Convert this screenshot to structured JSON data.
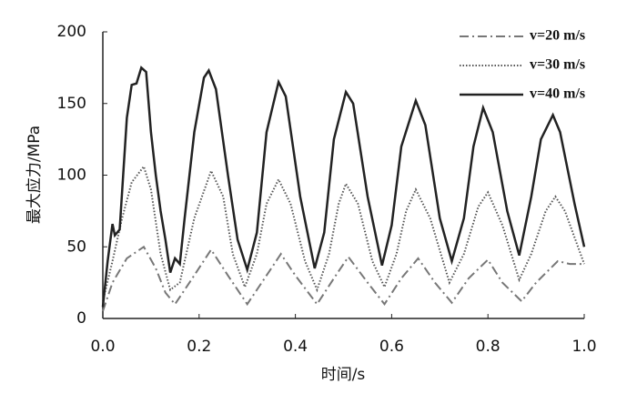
{
  "chart_data": {
    "type": "line",
    "x_label": "时间/s",
    "y_label": "最大应力/MPa",
    "xlim": [
      0,
      1
    ],
    "ylim": [
      0,
      200
    ],
    "xticks": [
      {
        "value": 0,
        "label": "0.0"
      },
      0.2,
      0.4,
      0.6,
      0.8,
      {
        "value": 1,
        "label": "1.0"
      }
    ],
    "yticks": [
      0,
      50,
      100,
      150,
      200
    ],
    "legend": "upper-right",
    "series": [
      {
        "name": "v=20 m/s",
        "color": "#777777",
        "style": "dashdot",
        "x": [
          0,
          0.02,
          0.05,
          0.085,
          0.11,
          0.13,
          0.15,
          0.18,
          0.225,
          0.26,
          0.3,
          0.33,
          0.37,
          0.4,
          0.445,
          0.48,
          0.51,
          0.55,
          0.585,
          0.62,
          0.655,
          0.69,
          0.725,
          0.76,
          0.8,
          0.83,
          0.87,
          0.9,
          0.945,
          0.97,
          1.0
        ],
        "values": [
          5,
          25,
          42,
          50,
          35,
          18,
          10,
          25,
          48,
          30,
          10,
          25,
          45,
          30,
          10,
          28,
          43,
          25,
          10,
          28,
          42,
          25,
          11,
          28,
          41,
          25,
          12,
          25,
          40,
          38,
          38
        ]
      },
      {
        "name": "v=30 m/s",
        "color": "#555555",
        "style": "dotted",
        "x": [
          0,
          0.02,
          0.04,
          0.06,
          0.085,
          0.1,
          0.12,
          0.14,
          0.16,
          0.19,
          0.225,
          0.25,
          0.27,
          0.295,
          0.32,
          0.34,
          0.365,
          0.39,
          0.42,
          0.445,
          0.47,
          0.49,
          0.505,
          0.53,
          0.56,
          0.585,
          0.61,
          0.63,
          0.65,
          0.68,
          0.72,
          0.75,
          0.78,
          0.8,
          0.83,
          0.865,
          0.89,
          0.92,
          0.94,
          0.96,
          1.0
        ],
        "values": [
          12,
          40,
          70,
          95,
          106,
          90,
          45,
          20,
          25,
          70,
          103,
          85,
          45,
          22,
          45,
          80,
          97,
          80,
          40,
          20,
          45,
          80,
          94,
          80,
          40,
          22,
          45,
          75,
          90,
          70,
          25,
          45,
          78,
          88,
          65,
          27,
          45,
          75,
          85,
          75,
          38
        ]
      },
      {
        "name": "v=40 m/s",
        "color": "#222222",
        "style": "solid",
        "x": [
          0,
          0.01,
          0.02,
          0.025,
          0.035,
          0.05,
          0.06,
          0.07,
          0.08,
          0.09,
          0.1,
          0.11,
          0.12,
          0.13,
          0.14,
          0.15,
          0.16,
          0.17,
          0.19,
          0.21,
          0.22,
          0.235,
          0.26,
          0.28,
          0.3,
          0.32,
          0.34,
          0.365,
          0.38,
          0.41,
          0.44,
          0.46,
          0.48,
          0.505,
          0.52,
          0.55,
          0.58,
          0.6,
          0.62,
          0.65,
          0.67,
          0.7,
          0.725,
          0.75,
          0.77,
          0.79,
          0.81,
          0.84,
          0.865,
          0.89,
          0.91,
          0.935,
          0.95,
          0.98,
          1.0
        ],
        "values": [
          8,
          40,
          66,
          58,
          62,
          140,
          163,
          164,
          175,
          172,
          130,
          100,
          75,
          55,
          32,
          42,
          38,
          70,
          130,
          168,
          173,
          160,
          100,
          55,
          34,
          60,
          130,
          165,
          155,
          85,
          35,
          60,
          125,
          158,
          150,
          85,
          37,
          65,
          120,
          152,
          135,
          70,
          40,
          70,
          120,
          147,
          130,
          75,
          44,
          85,
          125,
          142,
          130,
          80,
          50
        ]
      }
    ]
  }
}
